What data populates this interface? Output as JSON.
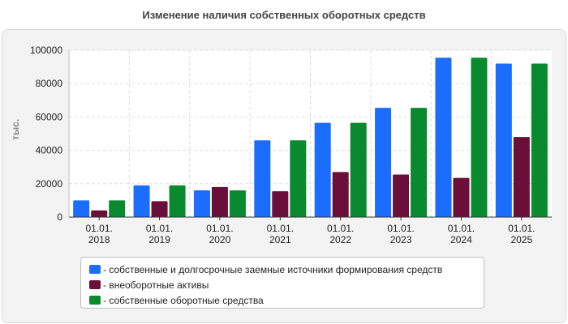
{
  "chart_data": {
    "type": "bar",
    "title": "Изменение наличия собственных оборотных средств",
    "ylabel": "тыс.",
    "xlabel": "",
    "ylim": [
      0,
      100000
    ],
    "yticks": [
      "0",
      "20000",
      "40000",
      "60000",
      "80000",
      "100000"
    ],
    "grid": true,
    "legend_position": "bottom",
    "categories": [
      [
        "01.01.",
        "2018"
      ],
      [
        "01.01.",
        "2019"
      ],
      [
        "01.01.",
        "2020"
      ],
      [
        "01.01.",
        "2021"
      ],
      [
        "01.01.",
        "2022"
      ],
      [
        "01.01.",
        "2023"
      ],
      [
        "01.01.",
        "2024"
      ],
      [
        "01.01.",
        "2025"
      ]
    ],
    "series": [
      {
        "name": "- собственные и долгосрочные заемные источники формирования средств",
        "color": "#1a6dff",
        "values": [
          10000,
          19000,
          16000,
          46000,
          56500,
          65500,
          95500,
          92000
        ]
      },
      {
        "name": "- внеоборотные активы",
        "color": "#6b0f3a",
        "values": [
          4000,
          9500,
          18000,
          15500,
          27000,
          25500,
          23500,
          48000
        ]
      },
      {
        "name": "- собственные оборотные средства",
        "color": "#0a8a2e",
        "values": [
          10000,
          19000,
          16000,
          46000,
          56500,
          65500,
          95500,
          92000
        ]
      }
    ]
  }
}
